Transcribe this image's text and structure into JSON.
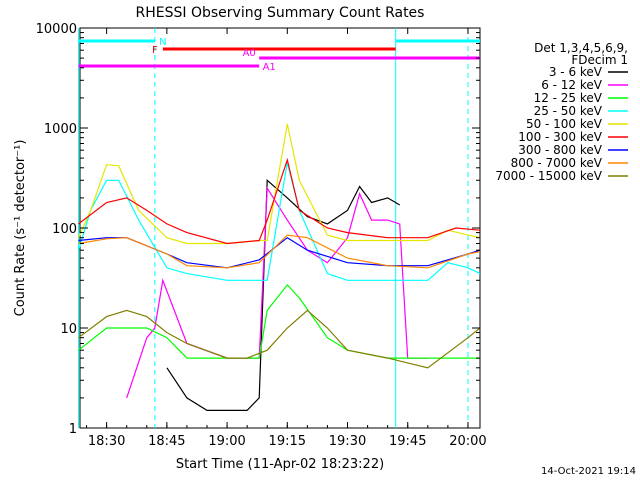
{
  "chart_data": {
    "type": "line",
    "title": "RHESSI Observing Summary Count Rates",
    "xlabel": "Start Time (11-Apr-02 18:23:22)",
    "ylabel": "Count Rate (s⁻¹ detector⁻¹)",
    "y_scale": "log",
    "ylim": [
      1,
      10000
    ],
    "xlim": [
      "18:23:22",
      "20:03:00"
    ],
    "x_ticks": [
      "18:30",
      "18:45",
      "19:00",
      "19:15",
      "19:30",
      "19:45",
      "20:00"
    ],
    "y_ticks": [
      "1",
      "10",
      "100",
      "1000",
      "10000"
    ],
    "legend_header": [
      "Det 1,3,4,5,6,9,",
      "FDecim 1"
    ],
    "legend_position": "right",
    "timestamp": "14-Oct-2021 19:14",
    "grid": false,
    "series": [
      {
        "name": "3 - 6 keV",
        "color": "#000000",
        "x": [
          "18:23",
          "18:30",
          "18:40",
          "18:45",
          "18:50",
          "18:55",
          "19:00",
          "19:05",
          "19:08",
          "19:10",
          "19:15",
          "19:20",
          "19:25",
          "19:30",
          "19:33",
          "19:36",
          "19:40",
          "19:43"
        ],
        "y": [
          null,
          null,
          null,
          4,
          2,
          1.5,
          1.5,
          1.5,
          2,
          300,
          200,
          130,
          110,
          150,
          260,
          180,
          200,
          170
        ]
      },
      {
        "name": "6 - 12 keV",
        "color": "#ff00ff",
        "x": [
          "18:35",
          "18:40",
          "18:42",
          "18:44",
          "18:50",
          "19:00",
          "19:08",
          "19:10",
          "19:15",
          "19:20",
          "19:25",
          "19:30",
          "19:33",
          "19:36",
          "19:40",
          "19:43",
          "19:45",
          "19:50"
        ],
        "y": [
          2,
          8,
          10,
          30,
          7,
          5,
          5,
          250,
          120,
          60,
          45,
          80,
          220,
          120,
          120,
          110,
          5,
          5
        ]
      },
      {
        "name": "12 - 25 keV",
        "color": "#00ff00",
        "x": [
          "18:23",
          "18:30",
          "18:40",
          "18:45",
          "18:50",
          "19:00",
          "19:08",
          "19:10",
          "19:15",
          "19:18",
          "19:25",
          "19:30",
          "19:40",
          "19:50",
          "20:00",
          "20:03"
        ],
        "y": [
          6,
          10,
          10,
          8,
          5,
          5,
          5,
          15,
          27,
          20,
          8,
          6,
          5,
          5,
          5,
          5
        ]
      },
      {
        "name": "25 - 50 keV",
        "color": "#00ffff",
        "x": [
          "18:23",
          "18:26",
          "18:30",
          "18:33",
          "18:38",
          "18:45",
          "18:50",
          "19:00",
          "19:08",
          "19:10",
          "19:15",
          "19:18",
          "19:25",
          "19:30",
          "19:40",
          "19:50",
          "19:55",
          "20:00",
          "20:03"
        ],
        "y": [
          60,
          150,
          300,
          300,
          120,
          40,
          35,
          30,
          30,
          30,
          450,
          150,
          35,
          30,
          30,
          30,
          45,
          40,
          35
        ]
      },
      {
        "name": "50 - 100 keV",
        "color": "#e6e600",
        "x": [
          "18:23",
          "18:26",
          "18:30",
          "18:33",
          "18:38",
          "18:45",
          "18:50",
          "19:00",
          "19:08",
          "19:10",
          "19:15",
          "19:18",
          "19:25",
          "19:30",
          "19:40",
          "19:50",
          "19:55",
          "20:00",
          "20:03"
        ],
        "y": [
          80,
          150,
          430,
          420,
          150,
          80,
          70,
          70,
          75,
          75,
          1100,
          300,
          85,
          75,
          75,
          75,
          95,
          85,
          80
        ]
      },
      {
        "name": "100 - 300 keV",
        "color": "#ff0000",
        "x": [
          "18:23",
          "18:30",
          "18:35",
          "18:40",
          "18:45",
          "18:50",
          "19:00",
          "19:08",
          "19:10",
          "19:15",
          "19:18",
          "19:25",
          "19:30",
          "19:40",
          "19:50",
          "19:57",
          "20:03"
        ],
        "y": [
          110,
          180,
          200,
          150,
          110,
          90,
          70,
          75,
          120,
          480,
          150,
          100,
          90,
          80,
          80,
          100,
          95
        ]
      },
      {
        "name": "300 - 800 keV",
        "color": "#0000ff",
        "x": [
          "18:23",
          "18:30",
          "18:35",
          "18:45",
          "18:50",
          "19:00",
          "19:08",
          "19:15",
          "19:20",
          "19:30",
          "19:40",
          "19:50",
          "20:00",
          "20:03"
        ],
        "y": [
          75,
          80,
          80,
          55,
          45,
          40,
          48,
          80,
          60,
          45,
          42,
          42,
          55,
          60
        ]
      },
      {
        "name": "800 - 7000 keV",
        "color": "#ff8800",
        "x": [
          "18:23",
          "18:30",
          "18:35",
          "18:45",
          "18:50",
          "19:00",
          "19:08",
          "19:15",
          "19:20",
          "19:30",
          "19:40",
          "19:50",
          "20:00",
          "20:03"
        ],
        "y": [
          70,
          78,
          80,
          55,
          42,
          40,
          45,
          85,
          80,
          50,
          42,
          40,
          55,
          58
        ]
      },
      {
        "name": "7000 - 15000 keV",
        "color": "#808000",
        "x": [
          "18:23",
          "18:30",
          "18:35",
          "18:40",
          "18:45",
          "18:50",
          "19:00",
          "19:05",
          "19:10",
          "19:15",
          "19:20",
          "19:25",
          "19:30",
          "19:40",
          "19:50",
          "20:00",
          "20:03"
        ],
        "y": [
          8,
          13,
          15,
          13,
          9,
          7,
          5,
          5,
          6,
          10,
          15,
          10,
          6,
          5,
          4,
          8,
          10
        ]
      }
    ],
    "flags": [
      {
        "label": "N",
        "color": "#00ffff",
        "segments": [
          [
            "18:23",
            "18:42"
          ],
          [
            "19:42",
            "20:03"
          ]
        ]
      },
      {
        "label": "F",
        "color": "#ff0000",
        "segments": [
          [
            "18:44",
            "19:42"
          ]
        ]
      },
      {
        "label": "A0",
        "color": "#ff00ff",
        "segments": [
          [
            "19:08",
            "20:03"
          ]
        ]
      },
      {
        "label": "A1",
        "color": "#ff00ff",
        "segments": [
          [
            "18:23",
            "19:08"
          ]
        ]
      }
    ],
    "vlines": [
      {
        "time": "18:23",
        "style": "solid",
        "color": "#00ffff"
      },
      {
        "time": "18:42",
        "style": "dashed",
        "color": "#00ffff"
      },
      {
        "time": "19:42",
        "style": "solid",
        "color": "#00ffff"
      },
      {
        "time": "20:00",
        "style": "dashed",
        "color": "#00ffff"
      }
    ]
  }
}
